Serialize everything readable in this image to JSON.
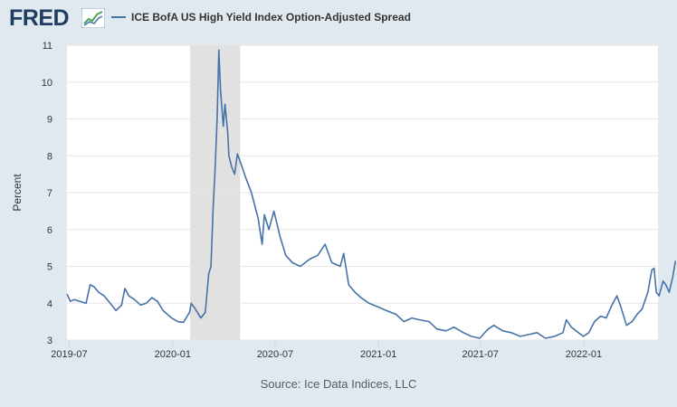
{
  "header": {
    "logo_text": "FRED",
    "logo_icon": "fred-graph-icon",
    "series_label": "ICE BofA US High Yield Index Option-Adjusted Spread"
  },
  "source": "Source: Ice Data Indices, LLC",
  "colors": {
    "background": "#e1e9f0",
    "plot": "#ffffff",
    "line": "#4572a7",
    "recession": "#e1e1e1",
    "logo": "#1f3d60"
  },
  "chart_data": {
    "type": "line",
    "title": "",
    "xlabel": "",
    "ylabel": "Percent",
    "ylim": [
      3,
      11
    ],
    "yticks": [
      3,
      4,
      5,
      6,
      7,
      8,
      9,
      10,
      11
    ],
    "xlim": [
      "2019-06-27",
      "2022-05-13"
    ],
    "xticks": [
      "2019-07",
      "2020-01",
      "2020-07",
      "2021-01",
      "2021-07",
      "2022-01"
    ],
    "grid": true,
    "recession": [
      "2020-02-01",
      "2020-04-30"
    ],
    "series": [
      {
        "name": "ICE BofA US High Yield Index Option-Adjusted Spread",
        "points": [
          [
            "2019-06-27",
            4.25
          ],
          [
            "2019-07-03",
            4.05
          ],
          [
            "2019-07-10",
            4.1
          ],
          [
            "2019-07-20",
            4.05
          ],
          [
            "2019-07-31",
            4.0
          ],
          [
            "2019-08-07",
            4.5
          ],
          [
            "2019-08-14",
            4.45
          ],
          [
            "2019-08-22",
            4.3
          ],
          [
            "2019-09-01",
            4.2
          ],
          [
            "2019-09-12",
            4.0
          ],
          [
            "2019-09-22",
            3.8
          ],
          [
            "2019-10-02",
            3.95
          ],
          [
            "2019-10-08",
            4.4
          ],
          [
            "2019-10-15",
            4.2
          ],
          [
            "2019-10-25",
            4.1
          ],
          [
            "2019-11-05",
            3.95
          ],
          [
            "2019-11-15",
            4.0
          ],
          [
            "2019-11-25",
            4.15
          ],
          [
            "2019-12-05",
            4.05
          ],
          [
            "2019-12-15",
            3.8
          ],
          [
            "2019-12-30",
            3.6
          ],
          [
            "2020-01-10",
            3.5
          ],
          [
            "2020-01-20",
            3.48
          ],
          [
            "2020-01-31",
            3.75
          ],
          [
            "2020-02-03",
            4.0
          ],
          [
            "2020-02-10",
            3.85
          ],
          [
            "2020-02-20",
            3.6
          ],
          [
            "2020-02-28",
            3.75
          ],
          [
            "2020-03-05",
            4.8
          ],
          [
            "2020-03-09",
            5.0
          ],
          [
            "2020-03-13",
            6.6
          ],
          [
            "2020-03-16",
            7.5
          ],
          [
            "2020-03-20",
            9.0
          ],
          [
            "2020-03-23",
            10.87
          ],
          [
            "2020-03-26",
            9.8
          ],
          [
            "2020-03-31",
            8.8
          ],
          [
            "2020-04-03",
            9.4
          ],
          [
            "2020-04-08",
            8.6
          ],
          [
            "2020-04-10",
            8.0
          ],
          [
            "2020-04-15",
            7.7
          ],
          [
            "2020-04-20",
            7.5
          ],
          [
            "2020-04-25",
            8.05
          ],
          [
            "2020-05-01",
            7.8
          ],
          [
            "2020-05-10",
            7.4
          ],
          [
            "2020-05-20",
            7.0
          ],
          [
            "2020-06-01",
            6.3
          ],
          [
            "2020-06-08",
            5.6
          ],
          [
            "2020-06-12",
            6.4
          ],
          [
            "2020-06-20",
            6.0
          ],
          [
            "2020-06-29",
            6.5
          ],
          [
            "2020-07-10",
            5.8
          ],
          [
            "2020-07-20",
            5.3
          ],
          [
            "2020-08-01",
            5.1
          ],
          [
            "2020-08-15",
            5.0
          ],
          [
            "2020-09-01",
            5.2
          ],
          [
            "2020-09-15",
            5.3
          ],
          [
            "2020-09-28",
            5.6
          ],
          [
            "2020-10-10",
            5.1
          ],
          [
            "2020-10-25",
            5.0
          ],
          [
            "2020-10-31",
            5.35
          ],
          [
            "2020-11-09",
            4.5
          ],
          [
            "2020-11-20",
            4.3
          ],
          [
            "2020-12-01",
            4.15
          ],
          [
            "2020-12-15",
            4.0
          ],
          [
            "2020-12-31",
            3.9
          ],
          [
            "2021-01-15",
            3.8
          ],
          [
            "2021-02-01",
            3.7
          ],
          [
            "2021-02-15",
            3.5
          ],
          [
            "2021-03-01",
            3.6
          ],
          [
            "2021-03-15",
            3.55
          ],
          [
            "2021-04-01",
            3.5
          ],
          [
            "2021-04-15",
            3.3
          ],
          [
            "2021-05-01",
            3.25
          ],
          [
            "2021-05-15",
            3.35
          ],
          [
            "2021-06-01",
            3.2
          ],
          [
            "2021-06-15",
            3.1
          ],
          [
            "2021-06-30",
            3.05
          ],
          [
            "2021-07-15",
            3.3
          ],
          [
            "2021-07-25",
            3.4
          ],
          [
            "2021-08-10",
            3.25
          ],
          [
            "2021-08-25",
            3.2
          ],
          [
            "2021-09-10",
            3.1
          ],
          [
            "2021-09-25",
            3.15
          ],
          [
            "2021-10-10",
            3.2
          ],
          [
            "2021-10-25",
            3.05
          ],
          [
            "2021-11-10",
            3.1
          ],
          [
            "2021-11-25",
            3.2
          ],
          [
            "2021-12-01",
            3.55
          ],
          [
            "2021-12-10",
            3.35
          ],
          [
            "2021-12-31",
            3.1
          ],
          [
            "2022-01-10",
            3.2
          ],
          [
            "2022-01-20",
            3.5
          ],
          [
            "2022-01-31",
            3.65
          ],
          [
            "2022-02-10",
            3.6
          ],
          [
            "2022-02-20",
            3.95
          ],
          [
            "2022-03-01",
            4.2
          ],
          [
            "2022-03-08",
            3.9
          ],
          [
            "2022-03-18",
            3.4
          ],
          [
            "2022-03-28",
            3.5
          ],
          [
            "2022-04-06",
            3.7
          ],
          [
            "2022-04-15",
            3.85
          ],
          [
            "2022-04-25",
            4.3
          ],
          [
            "2022-05-02",
            4.9
          ],
          [
            "2022-05-06",
            4.95
          ],
          [
            "2022-05-10",
            4.3
          ],
          [
            "2022-05-15",
            4.2
          ],
          [
            "2022-05-22",
            4.6
          ],
          [
            "2022-05-27",
            4.5
          ],
          [
            "2022-06-02",
            4.3
          ],
          [
            "2022-06-08",
            4.7
          ],
          [
            "2022-06-13",
            5.15
          ]
        ]
      }
    ]
  }
}
